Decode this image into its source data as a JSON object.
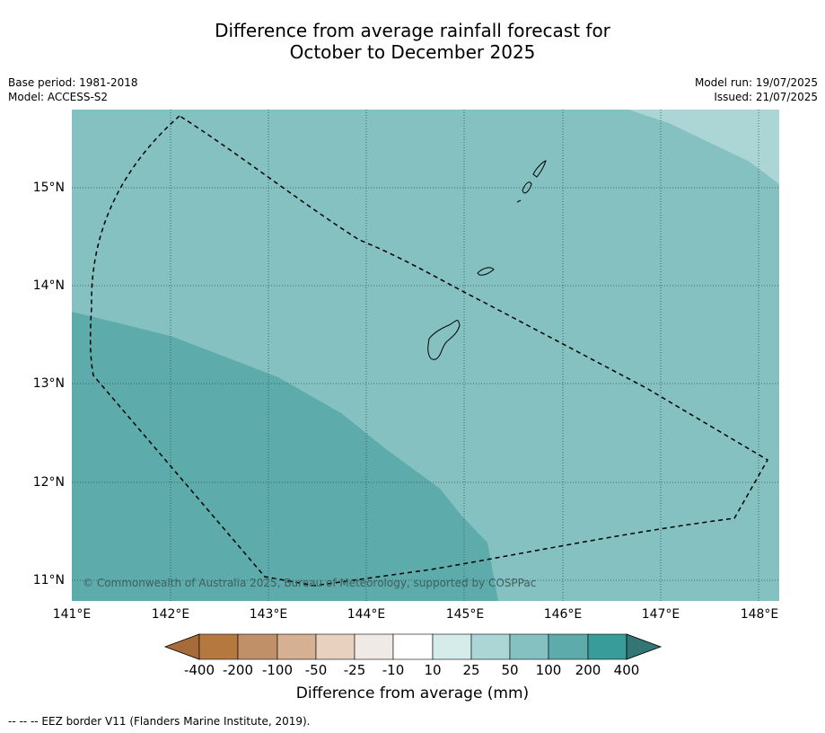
{
  "title_line1": "Difference from average rainfall forecast for",
  "title_line2": "October to December 2025",
  "meta_left": [
    "Base period: 1981-2018",
    "Model: ACCESS-S2"
  ],
  "meta_right": [
    "Model run: 19/07/2025",
    "Issued: 21/07/2025"
  ],
  "map": {
    "lat_labels": [
      "15°N",
      "14°N",
      "13°N",
      "12°N",
      "11°N"
    ],
    "lon_labels": [
      "141°E",
      "142°E",
      "143°E",
      "144°E",
      "145°E",
      "146°E",
      "147°E",
      "148°E"
    ],
    "copyright": "© Commonwealth of Australia 2025, Bureau of Meteorology, supported by COSPPac",
    "colors": {
      "land_outline": "#000000",
      "zone_50_100": "#84c1c0",
      "zone_25_50": "#acd6d6",
      "zone_100_200": "#5eabab"
    }
  },
  "colorbar": {
    "title": "Difference from average (mm)",
    "labels": [
      "-400",
      "-200",
      "-100",
      "-50",
      "-25",
      "-10",
      "10",
      "25",
      "50",
      "100",
      "200",
      "400"
    ],
    "colors": [
      "#a66b38",
      "#b5783f",
      "#c09068",
      "#d5b092",
      "#e8d1bf",
      "#f0eae6",
      "#ffffff",
      "#d5ecea",
      "#acd6d6",
      "#84c1c0",
      "#5eabab",
      "#389c9b",
      "#347676"
    ]
  },
  "footnote": "--  --  -- EEZ border V11 (Flanders Marine Institute, 2019)."
}
